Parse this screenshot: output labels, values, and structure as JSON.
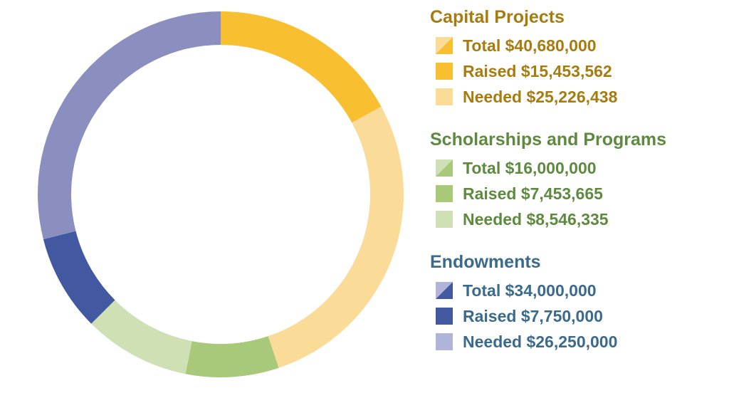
{
  "chart_data": {
    "type": "pie",
    "variant": "donut",
    "legend_position": "right",
    "slices_order": "clockwise from top",
    "slices": [
      {
        "group": "Capital Projects",
        "kind": "Raised",
        "value": 15453562,
        "color": "#f8c030"
      },
      {
        "group": "Capital Projects",
        "kind": "Needed",
        "value": 25226438,
        "color": "#fadb97"
      },
      {
        "group": "Scholarships and Programs",
        "kind": "Raised",
        "value": 7453665,
        "color": "#a8c87a"
      },
      {
        "group": "Scholarships and Programs",
        "kind": "Needed",
        "value": 8546335,
        "color": "#d0e0b5"
      },
      {
        "group": "Endowments",
        "kind": "Raised",
        "value": 7750000,
        "color": "#4258a0"
      },
      {
        "group": "Endowments",
        "kind": "Needed",
        "value": 26250000,
        "color": "#8a8fbf"
      }
    ],
    "legend_groups": [
      {
        "title": "Capital Projects",
        "title_color": "#a67c10",
        "items": [
          {
            "label": "Total $40,680,000",
            "swatch": "split",
            "colors": [
              "#fadb97",
              "#f8c030"
            ]
          },
          {
            "label": "Raised $15,453,562",
            "swatch": "solid",
            "colors": [
              "#f8c030"
            ]
          },
          {
            "label": "Needed $25,226,438",
            "swatch": "solid",
            "colors": [
              "#fadb97"
            ]
          }
        ]
      },
      {
        "title": "Scholarships and Programs",
        "title_color": "#5e8a40",
        "items": [
          {
            "label": "Total $16,000,000",
            "swatch": "split",
            "colors": [
              "#d0e0b5",
              "#a8c87a"
            ]
          },
          {
            "label": "Raised $7,453,665",
            "swatch": "solid",
            "colors": [
              "#a8c87a"
            ]
          },
          {
            "label": "Needed $8,546,335",
            "swatch": "solid",
            "colors": [
              "#d0e0b5"
            ]
          }
        ]
      },
      {
        "title": "Endowments",
        "title_color": "#3a6a8c",
        "items": [
          {
            "label": "Total $34,000,000",
            "swatch": "split",
            "colors": [
              "#b0b4d8",
              "#4258a0"
            ]
          },
          {
            "label": "Raised $7,750,000",
            "swatch": "solid",
            "colors": [
              "#4258a0"
            ]
          },
          {
            "label": "Needed $26,250,000",
            "swatch": "solid",
            "colors": [
              "#b0b4d8"
            ]
          }
        ]
      }
    ]
  }
}
